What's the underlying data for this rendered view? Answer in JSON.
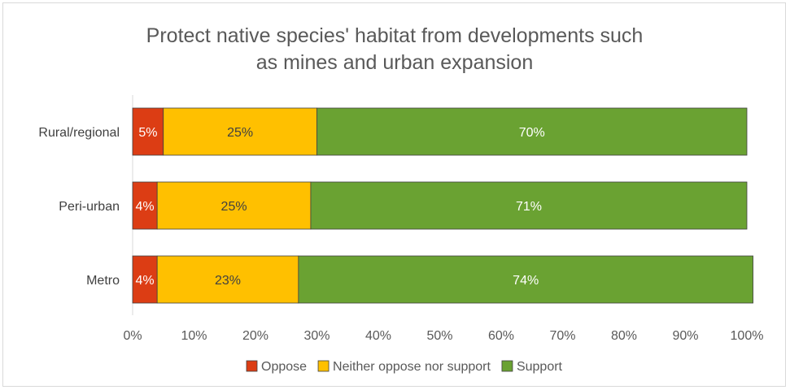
{
  "chart_data": {
    "type": "bar",
    "orientation": "horizontal",
    "stacked": true,
    "title": [
      "Protect native species' habitat from developments such",
      "as mines and urban expansion"
    ],
    "categories": [
      "Rural/regional",
      "Peri-urban",
      "Metro"
    ],
    "series": [
      {
        "name": "Oppose",
        "color": "#dc3d14",
        "label_color": "#ffffff",
        "values": [
          5,
          4,
          4
        ],
        "labels": [
          "5%",
          "4%",
          "4%"
        ]
      },
      {
        "name": "Neither oppose nor support",
        "color": "#ffc000",
        "label_color": "#404040",
        "values": [
          25,
          25,
          23
        ],
        "labels": [
          "25%",
          "25%",
          "23%"
        ]
      },
      {
        "name": "Support",
        "color": "#6aa232",
        "label_color": "#ffffff",
        "values": [
          70,
          71,
          74
        ],
        "labels": [
          "70%",
          "71%",
          "74%"
        ]
      }
    ],
    "xlim": [
      0,
      100
    ],
    "x_ticks": [
      "0%",
      "10%",
      "20%",
      "30%",
      "40%",
      "50%",
      "60%",
      "70%",
      "80%",
      "90%",
      "100%"
    ],
    "grid": false,
    "legend": "bottom"
  }
}
